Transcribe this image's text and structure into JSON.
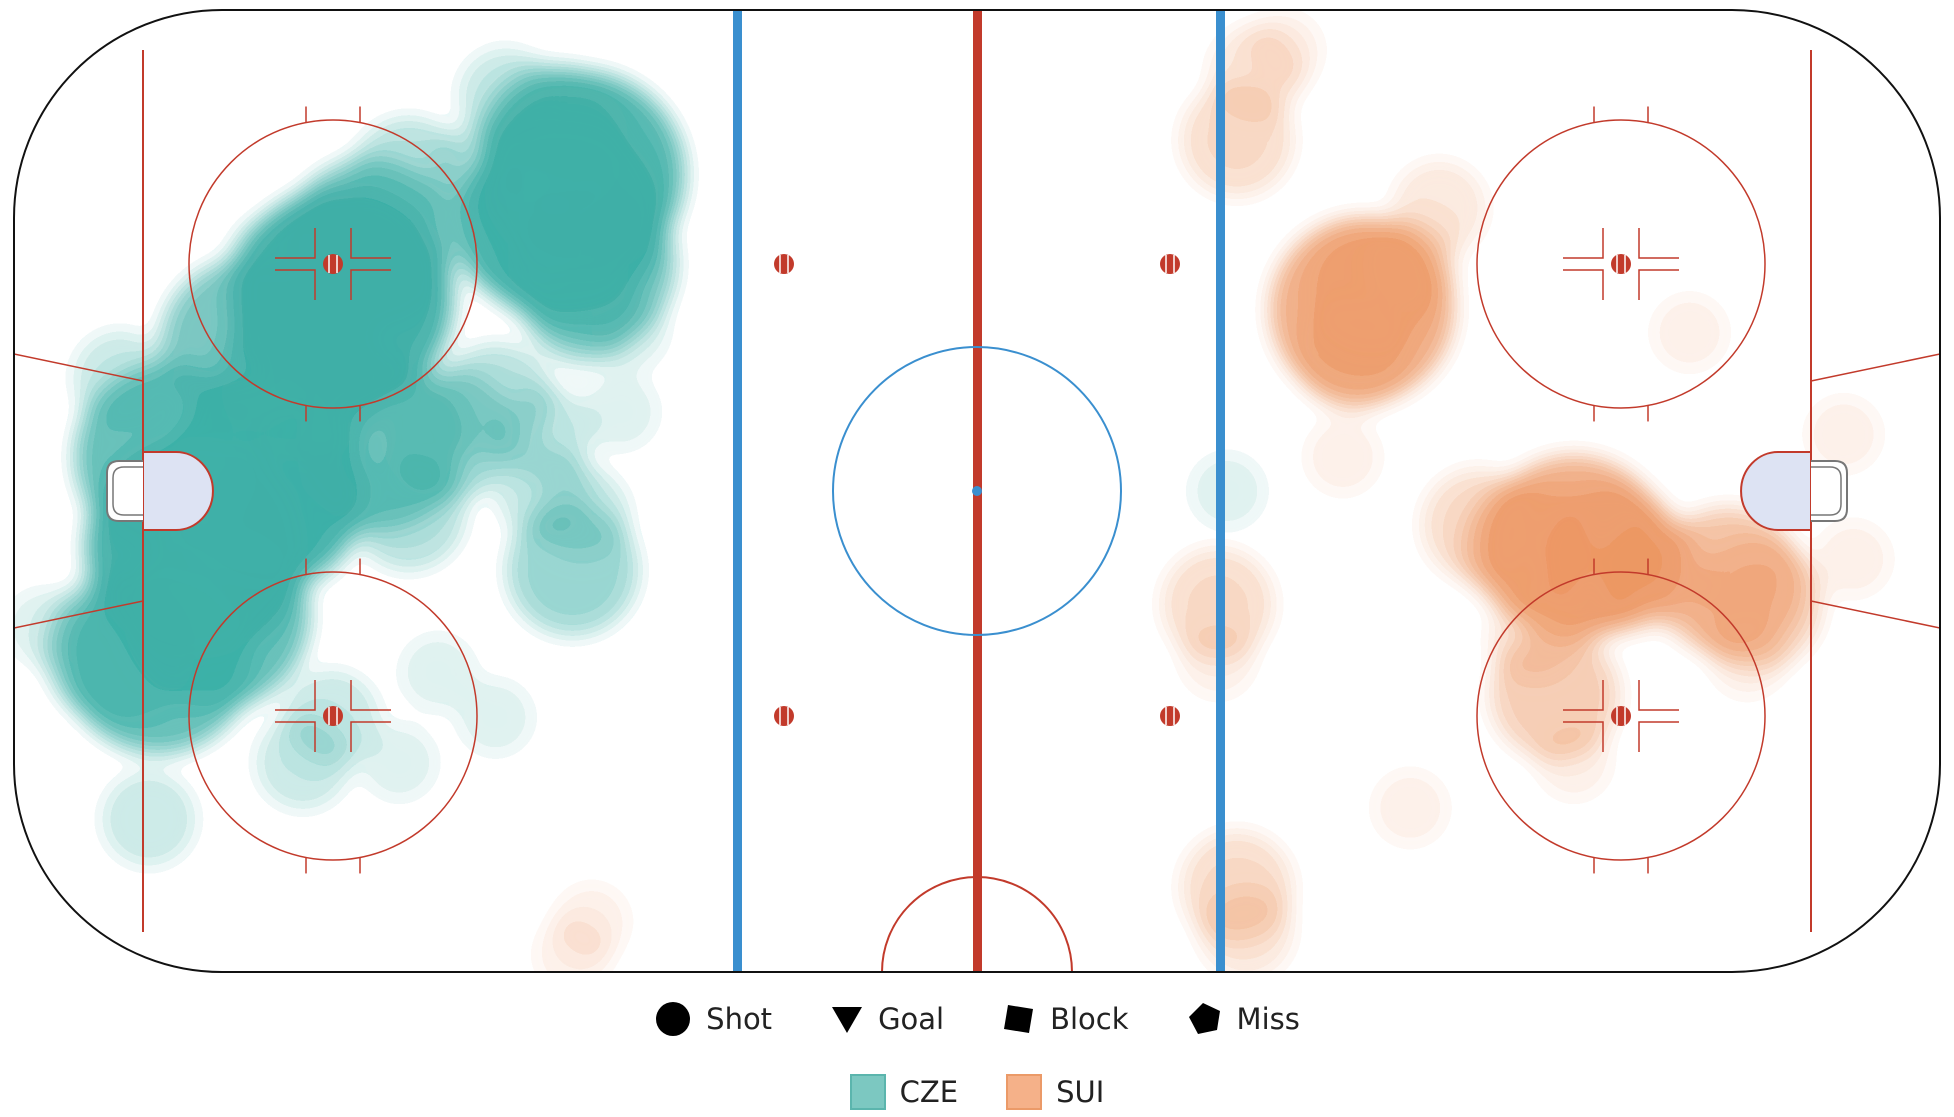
{
  "chart_data": {
    "type": "heatmap",
    "title": "",
    "xlabel": "",
    "ylabel": "",
    "xlim": [
      -100,
      100
    ],
    "ylim": [
      -42.5,
      42.5
    ],
    "grid": false,
    "legend_placement": "bottom-center",
    "shape_legend": [
      {
        "key": "shot",
        "label": "Shot",
        "icon": "circle-icon"
      },
      {
        "key": "goal",
        "label": "Goal",
        "icon": "triangle-down-icon"
      },
      {
        "key": "block",
        "label": "Block",
        "icon": "square-icon"
      },
      {
        "key": "miss",
        "label": "Miss",
        "icon": "pentagon-icon"
      }
    ],
    "series": [
      {
        "name": "CZE",
        "color": "#2ea9a0",
        "swatch_color": "#7cc8c1",
        "swatch_border": "#5bb5ad",
        "points": [
          {
            "x": -66,
            "y": 17,
            "d": 9
          },
          {
            "x": -63,
            "y": 22,
            "d": 6
          },
          {
            "x": -70,
            "y": 10,
            "d": 6
          },
          {
            "x": -81,
            "y": -5,
            "d": 9
          },
          {
            "x": -74,
            "y": 1,
            "d": 8
          },
          {
            "x": -84,
            "y": 3,
            "d": 7
          },
          {
            "x": -79,
            "y": -11,
            "d": 7
          },
          {
            "x": -85,
            "y": -15,
            "d": 7
          },
          {
            "x": -89,
            "y": -14,
            "d": 5
          },
          {
            "x": -76,
            "y": 13,
            "d": 6
          },
          {
            "x": -72,
            "y": -2,
            "d": 5
          },
          {
            "x": -62,
            "y": 4,
            "d": 6
          },
          {
            "x": -55,
            "y": 5,
            "d": 4
          },
          {
            "x": -50,
            "y": 8,
            "d": 3
          },
          {
            "x": -45,
            "y": 5,
            "d": 2
          },
          {
            "x": -59,
            "y": -2,
            "d": 3
          },
          {
            "x": -86,
            "y": -29,
            "d": 2
          },
          {
            "x": -97,
            "y": -12,
            "d": 1
          },
          {
            "x": -89,
            "y": 10,
            "d": 2
          },
          {
            "x": -67,
            "y": -20,
            "d": 2
          },
          {
            "x": -56,
            "y": -16,
            "d": 1
          },
          {
            "x": -59,
            "y": 28,
            "d": 3
          },
          {
            "x": -52,
            "y": 28,
            "d": 2
          },
          {
            "x": -44,
            "y": 31,
            "d": 5
          },
          {
            "x": -41,
            "y": 28,
            "d": 8
          },
          {
            "x": -43,
            "y": 24,
            "d": 8
          },
          {
            "x": -40,
            "y": 20,
            "d": 6
          },
          {
            "x": -41,
            "y": 16,
            "d": 3
          },
          {
            "x": -48,
            "y": 23,
            "d": 4
          },
          {
            "x": -49,
            "y": 35,
            "d": 2
          },
          {
            "x": -42,
            "y": -7,
            "d": 4
          },
          {
            "x": -45,
            "y": 0,
            "d": 2
          },
          {
            "x": -41,
            "y": -2,
            "d": 2
          },
          {
            "x": -37,
            "y": 7,
            "d": 1
          },
          {
            "x": -36,
            "y": 14,
            "d": 1
          },
          {
            "x": -60,
            "y": -24,
            "d": 1
          },
          {
            "x": -50,
            "y": -20,
            "d": 1
          },
          {
            "x": -70,
            "y": -24,
            "d": 2
          },
          {
            "x": -73,
            "y": 20,
            "d": 2
          },
          {
            "x": 26,
            "y": 0,
            "d": 1
          }
        ]
      },
      {
        "name": "SUI",
        "color": "#ea8a4f",
        "swatch_color": "#f5b189",
        "swatch_border": "#eb9a68",
        "points": [
          {
            "x": 40,
            "y": 16,
            "d": 7
          },
          {
            "x": 41,
            "y": 18,
            "d": 4
          },
          {
            "x": 39,
            "y": 12,
            "d": 3
          },
          {
            "x": 62,
            "y": -5,
            "d": 7
          },
          {
            "x": 57,
            "y": -5,
            "d": 4
          },
          {
            "x": 66,
            "y": -6,
            "d": 5
          },
          {
            "x": 70,
            "y": -7,
            "d": 3
          },
          {
            "x": 78,
            "y": -8,
            "d": 5
          },
          {
            "x": 81,
            "y": -10,
            "d": 4
          },
          {
            "x": 52,
            "y": -3,
            "d": 3
          },
          {
            "x": 60,
            "y": -18,
            "d": 4
          },
          {
            "x": 58,
            "y": -13,
            "d": 2
          },
          {
            "x": 62,
            "y": -24,
            "d": 1
          },
          {
            "x": 27,
            "y": 31,
            "d": 3
          },
          {
            "x": 29,
            "y": 37,
            "d": 2
          },
          {
            "x": 32,
            "y": 39,
            "d": 1
          },
          {
            "x": 25,
            "y": -10,
            "d": 3
          },
          {
            "x": 25,
            "y": -15,
            "d": 1
          },
          {
            "x": 27,
            "y": -35,
            "d": 3
          },
          {
            "x": 28,
            "y": -39,
            "d": 2
          },
          {
            "x": 48,
            "y": 25,
            "d": 2
          },
          {
            "x": 45,
            "y": 20,
            "d": 2
          },
          {
            "x": 38,
            "y": 3,
            "d": 1
          },
          {
            "x": 74,
            "y": 14,
            "d": 1
          },
          {
            "x": 90,
            "y": 5,
            "d": 1
          },
          {
            "x": 91,
            "y": -6,
            "d": 1
          },
          {
            "x": 80,
            "y": -15,
            "d": 1
          },
          {
            "x": 45,
            "y": -28,
            "d": 1
          },
          {
            "x": -42,
            "y": -41,
            "d": 1
          },
          {
            "x": -40,
            "y": -38,
            "d": 1
          }
        ]
      }
    ]
  }
}
